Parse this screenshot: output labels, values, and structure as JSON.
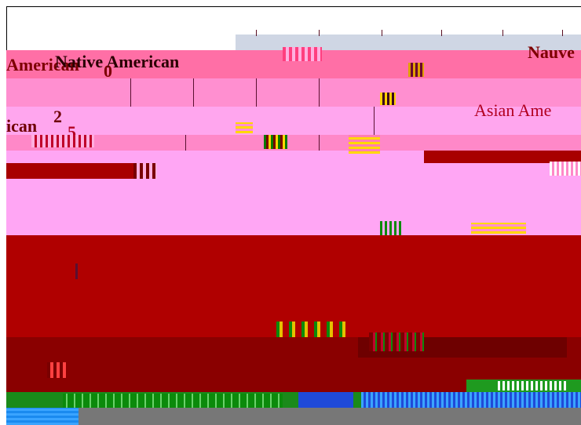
{
  "labels": {
    "native_american_left": "Native American",
    "american_fragment": "American",
    "zero": "0",
    "native_right_fragment": "Nauve",
    "asian_american_fragment": "Asian Ame",
    "ican_fragment": "ican",
    "two": "2",
    "five": "5"
  },
  "colors": {
    "pink_bright": "#ff6fa6",
    "pink_light": "#ffa6f4",
    "red_main": "#b00000",
    "red_dark": "#8a0000",
    "green": "#1a8a1a",
    "blue": "#3aa4ff"
  }
}
